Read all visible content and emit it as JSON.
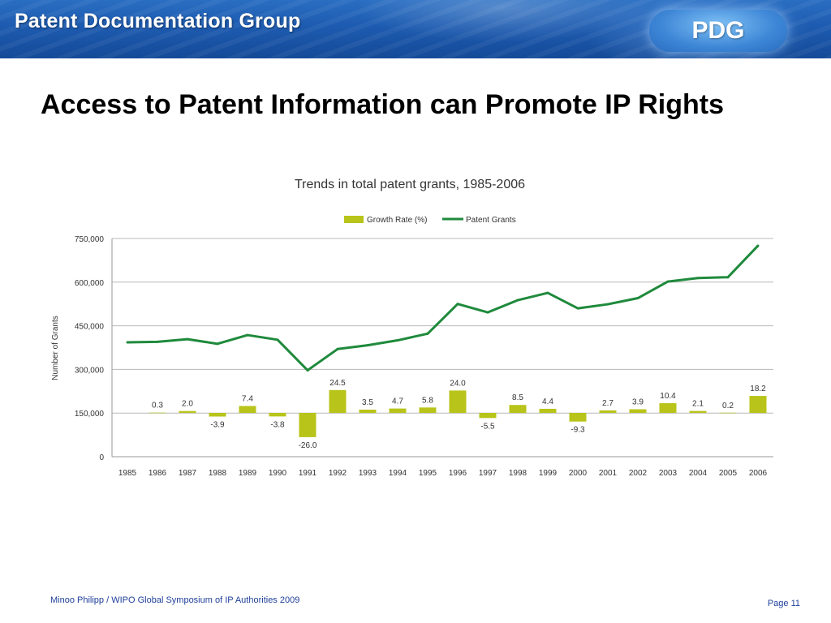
{
  "header": {
    "group_name": "Patent Documentation Group",
    "logo_text": "PDG"
  },
  "slide": {
    "title": "Access to Patent Information can Promote IP Rights"
  },
  "footer": {
    "credit": "Minoo Philipp / WIPO Global Symposium of IP Authorities 2009",
    "page": "Page 11"
  },
  "colors": {
    "bar": "#b8c41a",
    "line": "#1f8a3c",
    "header_blue": "#1d5bb0",
    "footer_text": "#1f3f9a"
  },
  "chart_data": {
    "type": "bar+line",
    "title": "Trends in total patent grants, 1985-2006",
    "ylabel": "Number of Grants",
    "ylim": [
      0,
      750000
    ],
    "yticks": [
      0,
      150000,
      300000,
      450000,
      600000,
      750000
    ],
    "ytick_labels": [
      "0",
      "150,000",
      "300,000",
      "450,000",
      "600,000",
      "750,000"
    ],
    "grid": true,
    "legend_position": "top-center",
    "categories": [
      "1985",
      "1986",
      "1987",
      "1988",
      "1989",
      "1990",
      "1991",
      "1992",
      "1993",
      "1994",
      "1995",
      "1996",
      "1997",
      "1998",
      "1999",
      "2000",
      "2001",
      "2002",
      "2003",
      "2004",
      "2005",
      "2006"
    ],
    "series": [
      {
        "name": "Growth Rate (%)",
        "kind": "bar",
        "values": [
          null,
          0.3,
          2.0,
          -3.9,
          7.4,
          -3.8,
          -26.0,
          24.5,
          3.5,
          4.7,
          5.8,
          24.0,
          -5.5,
          8.5,
          4.4,
          -9.3,
          2.7,
          3.9,
          10.4,
          2.1,
          0.2,
          18.2
        ],
        "labels": [
          "",
          "0.3",
          "2.0",
          "-3.9",
          "7.4",
          "-3.8",
          "-26.0",
          "24.5",
          "3.5",
          "4.7",
          "5.8",
          "24.0",
          "-5.5",
          "8.5",
          "4.4",
          "-9.3",
          "2.7",
          "3.9",
          "10.4",
          "2.1",
          "0.2",
          "18.2"
        ]
      },
      {
        "name": "Patent Grants",
        "kind": "line",
        "values": [
          393000,
          395000,
          404000,
          388000,
          418000,
          402000,
          297000,
          370000,
          383000,
          400000,
          423000,
          525000,
          496000,
          538000,
          563000,
          510000,
          524000,
          545000,
          602000,
          614000,
          617000,
          725000
        ]
      }
    ]
  }
}
